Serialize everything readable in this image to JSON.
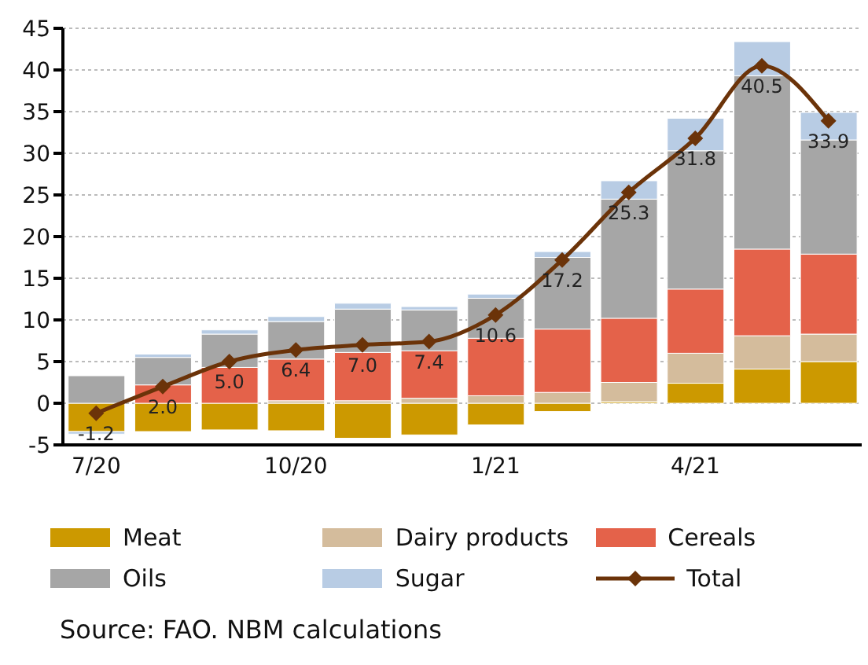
{
  "chart_data": {
    "type": "bar",
    "stacked": true,
    "categories": [
      "7/20",
      null,
      null,
      "10/20",
      null,
      null,
      "1/21",
      null,
      null,
      "4/21",
      null,
      null
    ],
    "series": [
      {
        "name": "Meat",
        "color": "#cc9900",
        "values": [
          -3.4,
          -3.4,
          -3.2,
          -3.3,
          -4.2,
          -3.8,
          -2.6,
          -1.0,
          0.2,
          2.4,
          4.1,
          5.0
        ]
      },
      {
        "name": "Dairy products",
        "color": "#d4bc9c",
        "values": [
          0,
          0,
          0,
          0.3,
          0.3,
          0.6,
          0.9,
          1.3,
          2.3,
          3.6,
          4.0,
          3.3
        ]
      },
      {
        "name": "Cereals",
        "color": "#e4624a",
        "values": [
          0,
          2.2,
          4.3,
          5.0,
          5.8,
          5.7,
          6.9,
          7.6,
          7.7,
          7.7,
          10.4,
          9.6
        ]
      },
      {
        "name": "Oils",
        "color": "#a6a6a6",
        "values": [
          3.3,
          3.3,
          4.0,
          4.5,
          5.2,
          4.9,
          4.8,
          8.6,
          14.3,
          16.6,
          20.8,
          13.7
        ]
      },
      {
        "name": "Sugar",
        "color": "#b8cce4",
        "values": [
          -0.3,
          0.4,
          0.5,
          0.6,
          0.7,
          0.4,
          0.5,
          0.7,
          2.2,
          3.9,
          4.1,
          3.3
        ]
      },
      {
        "name": "Total",
        "type": "line",
        "color": "#6b3309",
        "marker": "diamond",
        "values": [
          -1.2,
          2.0,
          5.0,
          6.4,
          7.0,
          7.4,
          10.6,
          17.2,
          25.3,
          31.8,
          40.5,
          33.9
        ],
        "value_labels": [
          "-1.2",
          "2.0",
          "5.0",
          "6.4",
          "7.0",
          "7.4",
          "10.6",
          "17.2",
          "25.3",
          "31.8",
          "40.5",
          "33.9"
        ]
      }
    ],
    "ylim": [
      -5,
      45
    ],
    "yticks": [
      -5,
      0,
      5,
      10,
      15,
      20,
      25,
      30,
      35,
      40,
      45
    ],
    "grid": "y",
    "legend": "bottom",
    "annotations": [
      "Source: FAO. NBM calculations"
    ]
  }
}
